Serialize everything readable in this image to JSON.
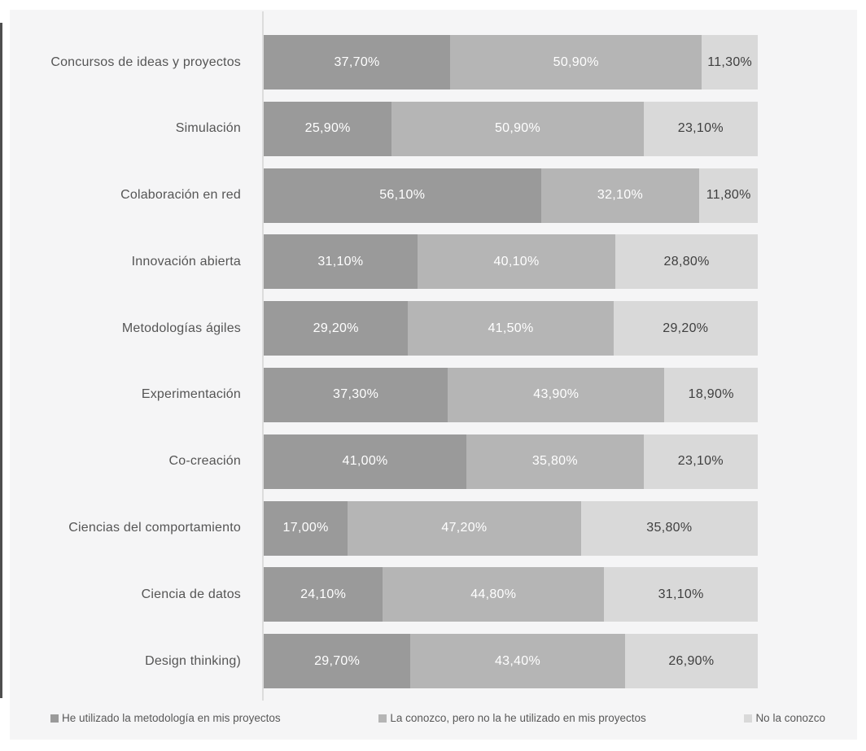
{
  "page": {
    "background": "#ffffff",
    "panel_background": "#f5f5f6",
    "axis_line_color": "#dcdcdc",
    "edge_line_color": "#4f4f4f",
    "category_text_color": "#555555",
    "legend_text_color": "#595959"
  },
  "chart_data": {
    "type": "bar",
    "orientation": "horizontal",
    "stacked": true,
    "title": "",
    "xlabel": "",
    "ylabel": "",
    "xlim": [
      0,
      100
    ],
    "grid": false,
    "legend_position": "bottom",
    "categories": [
      "Concursos de ideas y proyectos",
      "Simulación",
      "Colaboración en red",
      "Innovación abierta",
      "Metodologías ágiles",
      "Experimentación",
      "Co-creación",
      "Ciencias del comportamiento",
      "Ciencia de datos",
      "Design thinking)"
    ],
    "series": [
      {
        "name": "He utilizado la metodología en mis proyectos",
        "color": "#9a9a9a",
        "label_color": "#ffffff",
        "values": [
          37.7,
          25.9,
          56.1,
          31.1,
          29.2,
          37.3,
          41.0,
          17.0,
          24.1,
          29.7
        ],
        "labels": [
          "37,70%",
          "25,90%",
          "56,10%",
          "31,10%",
          "29,20%",
          "37,30%",
          "41,00%",
          "17,00%",
          "24,10%",
          "29,70%"
        ]
      },
      {
        "name": "La conozco, pero no la he utilizado en mis proyectos",
        "color": "#b5b5b5",
        "label_color": "#ffffff",
        "values": [
          50.9,
          50.9,
          32.1,
          40.1,
          41.5,
          43.9,
          35.8,
          47.2,
          44.8,
          43.4
        ],
        "labels": [
          "50,90%",
          "50,90%",
          "32,10%",
          "40,10%",
          "41,50%",
          "43,90%",
          "35,80%",
          "47,20%",
          "44,80%",
          "43,40%"
        ]
      },
      {
        "name": "No la conozco",
        "color": "#d9d9d9",
        "label_color": "#3f3f3f",
        "values": [
          11.3,
          23.1,
          11.8,
          28.8,
          29.2,
          18.9,
          23.1,
          35.8,
          31.1,
          26.9
        ],
        "labels": [
          "11,30%",
          "23,10%",
          "11,80%",
          "28,80%",
          "29,20%",
          "18,90%",
          "23,10%",
          "35,80%",
          "31,10%",
          "26,90%"
        ]
      }
    ]
  }
}
